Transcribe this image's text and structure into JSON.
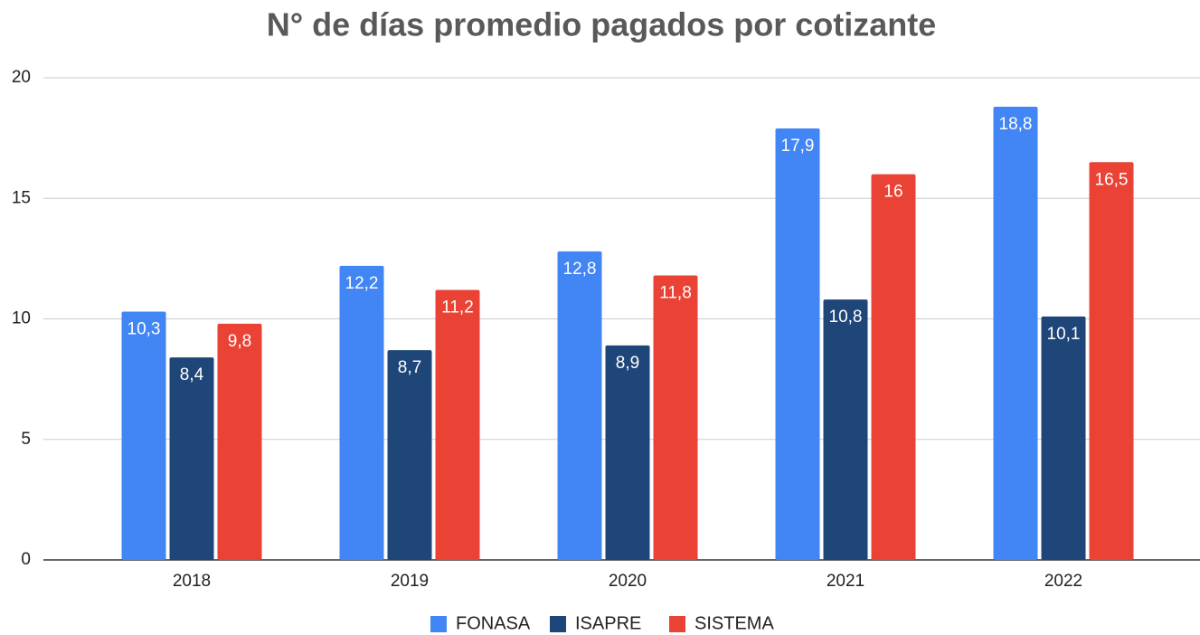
{
  "chart_data": {
    "type": "bar",
    "title": "N° de días promedio pagados por cotizante",
    "categories": [
      "2018",
      "2019",
      "2020",
      "2021",
      "2022"
    ],
    "series": [
      {
        "name": "FONASA",
        "color": "#4285f4",
        "values": [
          10.3,
          12.2,
          12.8,
          17.9,
          18.8
        ],
        "value_labels": [
          "10,3",
          "12,2",
          "12,8",
          "17,9",
          "18,8"
        ]
      },
      {
        "name": "ISAPRE",
        "color": "#1f4678",
        "values": [
          8.4,
          8.7,
          8.9,
          10.8,
          10.1
        ],
        "value_labels": [
          "8,4",
          "8,7",
          "8,9",
          "10,8",
          "10,1"
        ]
      },
      {
        "name": "SISTEMA",
        "color": "#ea4335",
        "values": [
          9.8,
          11.2,
          11.8,
          16,
          16.5
        ],
        "value_labels": [
          "9,8",
          "11,2",
          "11,8",
          "16",
          "16,5"
        ]
      }
    ],
    "ylim": [
      0,
      20
    ],
    "yticks": [
      0,
      5,
      10,
      15,
      20
    ],
    "grid": true,
    "legend": "bottom"
  }
}
